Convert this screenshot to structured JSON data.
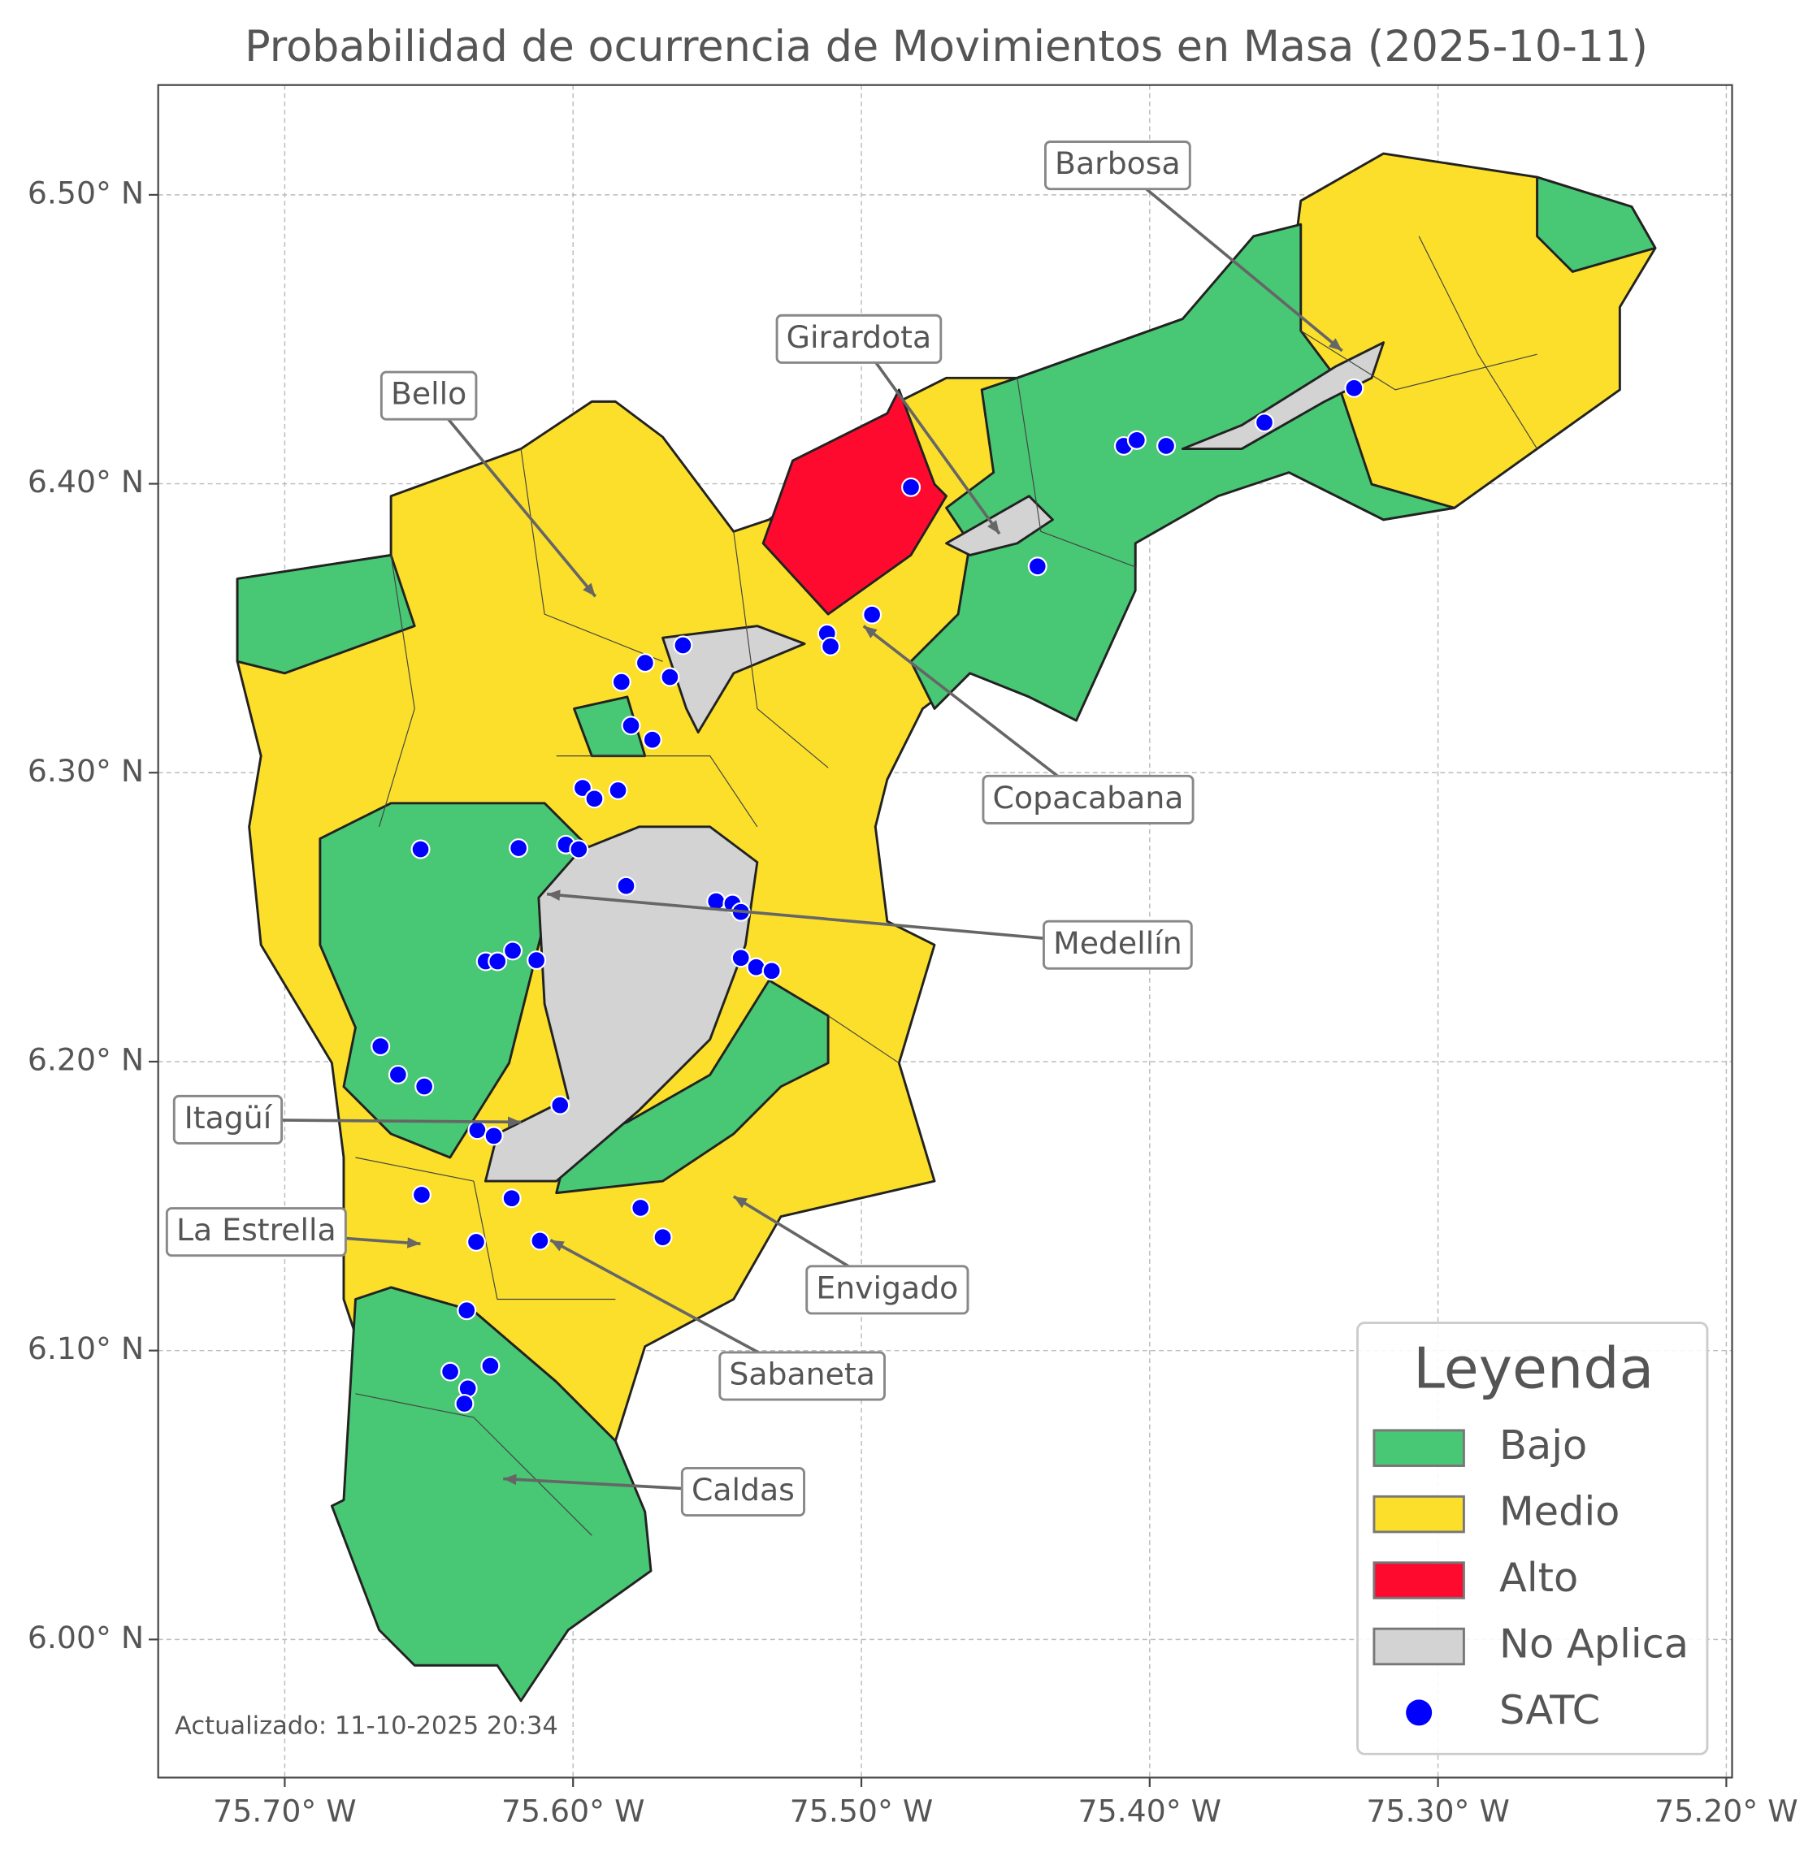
{
  "chart_data": {
    "type": "map",
    "title": "Probabilidad de ocurrencia de Movimientos en Masa (2025-10-11)",
    "xlim": [
      -75.7439,
      -75.198
    ],
    "ylim": [
      5.9522,
      6.538
    ],
    "xticks": [
      {
        "value": -75.7,
        "label": "75.70° W"
      },
      {
        "value": -75.6,
        "label": "75.60° W"
      },
      {
        "value": -75.5,
        "label": "75.50° W"
      },
      {
        "value": -75.4,
        "label": "75.40° W"
      },
      {
        "value": -75.3,
        "label": "75.30° W"
      },
      {
        "value": -75.2,
        "label": "75.20° W"
      }
    ],
    "yticks": [
      {
        "value": 6.0,
        "label": "6.00° N"
      },
      {
        "value": 6.1,
        "label": "6.10° N"
      },
      {
        "value": 6.2,
        "label": "6.20° N"
      },
      {
        "value": 6.3,
        "label": "6.30° N"
      },
      {
        "value": 6.4,
        "label": "6.40° N"
      },
      {
        "value": 6.5,
        "label": "6.50° N"
      }
    ],
    "grid": true,
    "annotations": [
      "Barbosa",
      "Girardota",
      "Bello",
      "Copacabana",
      "Medellín",
      "Itagüí",
      "La Estrella",
      "Envigado",
      "Sabaneta",
      "Caldas"
    ],
    "legend": {
      "title": "Leyenda",
      "position": "lower right",
      "entries": [
        {
          "name": "Bajo",
          "color": "#48c774"
        },
        {
          "name": "Medio",
          "color": "#fbdf2a"
        },
        {
          "name": "Alto",
          "color": "#ff0a2f"
        },
        {
          "name": "No Aplica",
          "color": "#d3d3d3"
        }
      ]
    },
    "series": [
      {
        "name": "SATC",
        "color": "#0000ff",
        "x": [
          -75.4828,
          -75.409,
          -75.4045,
          -75.3943,
          -75.3602,
          -75.3291,
          -75.4389,
          -75.4963,
          -75.5119,
          -75.5107,
          -75.5619,
          -75.575,
          -75.5664,
          -75.5832,
          -75.5799,
          -75.5725,
          -75.5967,
          -75.5926,
          -75.5844,
          -75.6189,
          -75.6529,
          -75.6025,
          -75.598,
          -75.5816,
          -75.5504,
          -75.5447,
          -75.5418,
          -75.5418,
          -75.5365,
          -75.5311,
          -75.6303,
          -75.6262,
          -75.6209,
          -75.6127,
          -75.6668,
          -75.6607,
          -75.6516,
          -75.6045,
          -75.6332,
          -75.6275,
          -75.6525,
          -75.6213,
          -75.5766,
          -75.5689,
          -75.6336,
          -75.6115,
          -75.6369,
          -75.6426,
          -75.6365,
          -75.6377,
          -75.6287
        ],
        "y": [
          6.3988,
          6.4131,
          6.4151,
          6.4131,
          6.4212,
          6.4331,
          6.3714,
          6.3547,
          6.3482,
          6.3437,
          6.3441,
          6.338,
          6.3331,
          6.3314,
          6.3163,
          6.3114,
          6.2947,
          6.291,
          6.2939,
          6.2739,
          6.2735,
          6.2751,
          6.2735,
          6.2608,
          6.2555,
          6.2547,
          6.2518,
          6.2359,
          6.2327,
          6.2314,
          6.2347,
          6.2347,
          6.2384,
          6.2351,
          6.2053,
          6.1955,
          6.1914,
          6.1849,
          6.1763,
          6.1743,
          6.1539,
          6.1527,
          6.1494,
          6.1392,
          6.1376,
          6.138,
          6.1139,
          6.0927,
          6.0869,
          6.0816,
          6.0947
        ]
      }
    ],
    "footnote": "Actualizado: 11-10-2025 20:34"
  }
}
